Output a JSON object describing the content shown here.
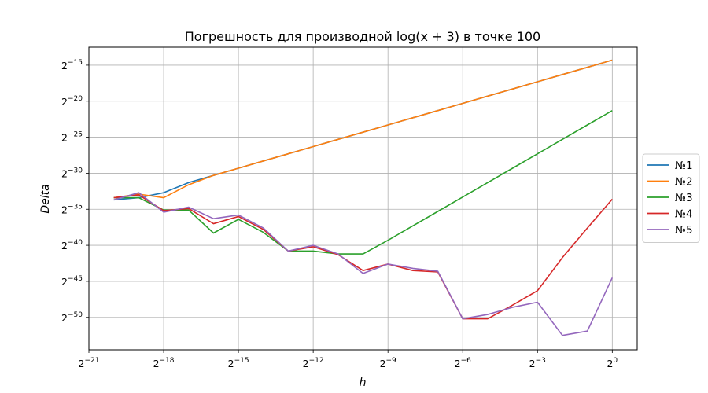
{
  "chart_data": {
    "type": "line",
    "title": "Погрешность для производной log(x + 3) в точке 100",
    "xlabel": "h",
    "ylabel": "Delta",
    "x_scale": "log2",
    "y_scale": "log2",
    "xlim_exp": [
      -21,
      1
    ],
    "ylim_exp": [
      -54.5,
      -12.5
    ],
    "x_tick_exponents": [
      -21,
      -18,
      -15,
      -12,
      -9,
      -6,
      -3,
      0
    ],
    "y_tick_exponents": [
      -15,
      -20,
      -25,
      -30,
      -35,
      -40,
      -45,
      -50
    ],
    "tick_base": "2",
    "grid": true,
    "legend_position": "center-right",
    "x_exp": [
      -20,
      -19,
      -18,
      -17,
      -16,
      -15,
      -14,
      -13,
      -12,
      -11,
      -10,
      -9,
      -8,
      -7,
      -6,
      -5,
      -4,
      -3,
      -2,
      -1,
      0
    ],
    "series": [
      {
        "name": "№1",
        "color": "#1f77b4",
        "y_exp": [
          -33.7,
          -33.4,
          -32.7,
          -31.3,
          -30.3,
          -29.3,
          -28.3,
          -27.3,
          -26.3,
          -25.3,
          -24.3,
          -23.3,
          -22.3,
          -21.3,
          -20.3,
          -19.3,
          -18.3,
          -17.3,
          -16.3,
          -15.3,
          -14.3
        ]
      },
      {
        "name": "№2",
        "color": "#ff7f0e",
        "y_exp": [
          -33.4,
          -32.9,
          -33.4,
          -31.6,
          -30.3,
          -29.3,
          -28.3,
          -27.3,
          -26.3,
          -25.3,
          -24.3,
          -23.3,
          -22.3,
          -21.3,
          -20.3,
          -19.3,
          -18.3,
          -17.3,
          -16.3,
          -15.3,
          -14.3
        ]
      },
      {
        "name": "№3",
        "color": "#2ca02c",
        "y_exp": [
          -33.4,
          -33.4,
          -35.1,
          -35.1,
          -38.3,
          -36.4,
          -38.2,
          -40.8,
          -40.8,
          -41.2,
          -41.2,
          -39.3,
          -37.3,
          -35.3,
          -33.3,
          -31.3,
          -29.3,
          -27.3,
          -25.3,
          -23.3,
          -21.3
        ]
      },
      {
        "name": "№4",
        "color": "#d62728",
        "y_exp": [
          -33.4,
          -33.0,
          -35.2,
          -34.9,
          -37.0,
          -36.0,
          -37.8,
          -40.8,
          -40.2,
          -41.3,
          -43.5,
          -42.6,
          -43.5,
          -43.7,
          -50.2,
          -50.2,
          -48.3,
          -46.3,
          -41.7,
          -37.6,
          -33.6
        ]
      },
      {
        "name": "№5",
        "color": "#9467bd",
        "y_exp": [
          -33.7,
          -32.7,
          -35.4,
          -34.7,
          -36.3,
          -35.8,
          -37.6,
          -40.8,
          -40.0,
          -41.2,
          -43.9,
          -42.6,
          -43.2,
          -43.6,
          -50.2,
          -49.6,
          -48.6,
          -47.9,
          -52.5,
          -51.9,
          -44.5
        ]
      }
    ]
  }
}
